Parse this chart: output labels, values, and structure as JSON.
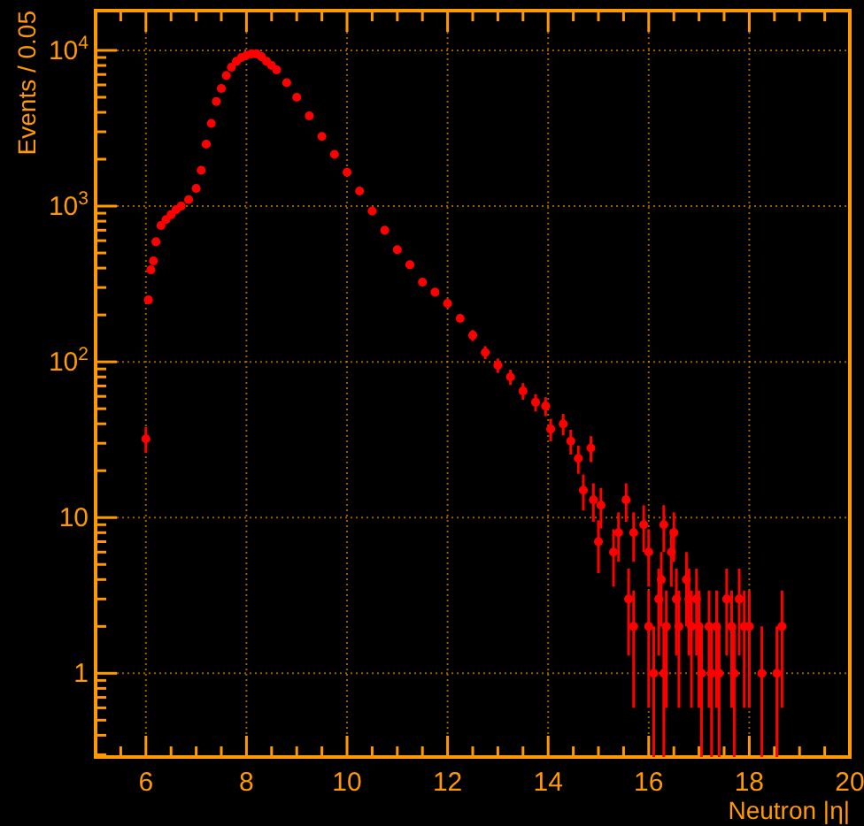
{
  "chart_data": {
    "type": "scatter",
    "xlabel": "Neutron |η|",
    "ylabel": "Events / 0.05",
    "log": "y",
    "grid": true,
    "marker": "circle",
    "xlim": [
      5,
      20
    ],
    "ylim": [
      0.29,
      18000
    ],
    "xticks": [
      {
        "value": 5.5,
        "label": null
      },
      6,
      {
        "value": 6.5,
        "label": null
      },
      {
        "value": 7,
        "label": null
      },
      {
        "value": 7.5,
        "label": null
      },
      8,
      {
        "value": 8.5,
        "label": null
      },
      {
        "value": 9,
        "label": null
      },
      {
        "value": 9.5,
        "label": null
      },
      10,
      {
        "value": 10.5,
        "label": null
      },
      {
        "value": 11,
        "label": null
      },
      {
        "value": 11.5,
        "label": null
      },
      12,
      {
        "value": 12.5,
        "label": null
      },
      {
        "value": 13,
        "label": null
      },
      {
        "value": 13.5,
        "label": null
      },
      14,
      {
        "value": 14.5,
        "label": null
      },
      {
        "value": 15,
        "label": null
      },
      {
        "value": 15.5,
        "label": null
      },
      16,
      {
        "value": 16.5,
        "label": null
      },
      {
        "value": 17,
        "label": null
      },
      {
        "value": 17.5,
        "label": null
      },
      18,
      {
        "value": 18.5,
        "label": null
      },
      {
        "value": 19,
        "label": null
      },
      {
        "value": 19.5,
        "label": null
      },
      20
    ],
    "yticks": [
      {
        "value": 0.3,
        "label": null
      },
      {
        "value": 0.4,
        "label": null
      },
      {
        "value": 0.5,
        "label": null
      },
      {
        "value": 0.6,
        "label": null
      },
      {
        "value": 0.7,
        "label": null
      },
      {
        "value": 0.8,
        "label": null
      },
      {
        "value": 0.9,
        "label": null
      },
      1,
      {
        "value": 2,
        "label": null
      },
      {
        "value": 3,
        "label": null
      },
      {
        "value": 4,
        "label": null
      },
      {
        "value": 5,
        "label": null
      },
      {
        "value": 6,
        "label": null
      },
      {
        "value": 7,
        "label": null
      },
      {
        "value": 8,
        "label": null
      },
      {
        "value": 9,
        "label": null
      },
      10,
      {
        "value": 20,
        "label": null
      },
      {
        "value": 30,
        "label": null
      },
      {
        "value": 40,
        "label": null
      },
      {
        "value": 50,
        "label": null
      },
      {
        "value": 60,
        "label": null
      },
      {
        "value": 70,
        "label": null
      },
      {
        "value": 80,
        "label": null
      },
      {
        "value": 90,
        "label": null
      },
      {
        "value": 100,
        "label": "10$^{2}$"
      },
      {
        "value": 200,
        "label": null
      },
      {
        "value": 300,
        "label": null
      },
      {
        "value": 400,
        "label": null
      },
      {
        "value": 500,
        "label": null
      },
      {
        "value": 600,
        "label": null
      },
      {
        "value": 700,
        "label": null
      },
      {
        "value": 800,
        "label": null
      },
      {
        "value": 900,
        "label": null
      },
      {
        "value": 1000,
        "label": "10$^{3}$"
      },
      {
        "value": 2000,
        "label": null
      },
      {
        "value": 3000,
        "label": null
      },
      {
        "value": 4000,
        "label": null
      },
      {
        "value": 5000,
        "label": null
      },
      {
        "value": 6000,
        "label": null
      },
      {
        "value": 7000,
        "label": null
      },
      {
        "value": 8000,
        "label": null
      },
      {
        "value": 9000,
        "label": null
      },
      {
        "value": 10000,
        "label": "10$^{4}$"
      }
    ],
    "series": [
      {
        "color": "#ff0000",
        "x": [
          6.0,
          6.05,
          6.1,
          6.15,
          6.2,
          6.3,
          6.4,
          6.5,
          6.6,
          6.7,
          6.85,
          7.0,
          7.1,
          7.2,
          7.3,
          7.4,
          7.5,
          7.6,
          7.7,
          7.8,
          7.9,
          8.0,
          8.1,
          8.2,
          8.3,
          8.4,
          8.5,
          8.6,
          8.8,
          9.0,
          9.25,
          9.5,
          9.75,
          10.0,
          10.25,
          10.5,
          10.75,
          11.0,
          11.25,
          11.5,
          11.75,
          12.0,
          12.25,
          12.5,
          12.75,
          13.0,
          13.25,
          13.5,
          13.75,
          13.95,
          14.05,
          14.3,
          14.45,
          14.6,
          14.7,
          14.85,
          14.9,
          15.0,
          15.05,
          15.3,
          15.4,
          15.55,
          15.6,
          15.7,
          15.7,
          15.9,
          16.0,
          16.0,
          16.1,
          16.2,
          16.25,
          16.3,
          16.3,
          16.35,
          16.45,
          16.5,
          16.55,
          16.6,
          16.75,
          16.8,
          16.85,
          16.95,
          17.0,
          17.05,
          17.2,
          17.25,
          17.35,
          17.4,
          17.55,
          17.65,
          17.7,
          17.8,
          17.9,
          18.0,
          18.25,
          18.55,
          18.65
        ],
        "values": [
          32,
          250,
          390,
          445,
          590,
          750,
          820,
          880,
          950,
          1000,
          1100,
          1300,
          1700,
          2500,
          3400,
          4700,
          5700,
          6900,
          7800,
          8500,
          9000,
          9300,
          9500,
          9500,
          9100,
          8500,
          8000,
          7500,
          6200,
          5000,
          3800,
          2800,
          2150,
          1650,
          1250,
          930,
          700,
          525,
          420,
          325,
          280,
          237,
          190,
          148,
          115,
          95,
          80,
          65,
          55,
          52,
          37,
          40,
          31,
          24,
          15,
          28,
          13,
          7,
          12,
          6,
          8,
          13,
          3,
          8,
          2,
          9,
          6,
          2,
          1,
          3,
          4,
          9,
          1,
          2,
          6,
          8,
          3,
          2,
          4,
          3,
          2,
          3,
          2,
          1,
          2,
          1,
          2,
          1,
          3,
          2,
          1,
          3,
          2,
          2,
          1,
          1,
          2
        ],
        "errors": [
          6,
          null,
          null,
          null,
          null,
          null,
          null,
          null,
          null,
          null,
          null,
          null,
          null,
          null,
          null,
          null,
          null,
          null,
          null,
          null,
          null,
          null,
          null,
          null,
          null,
          null,
          null,
          null,
          null,
          null,
          null,
          null,
          null,
          null,
          null,
          null,
          null,
          null,
          null,
          null,
          null,
          null,
          null,
          12,
          11,
          10,
          9,
          8,
          7,
          7.2,
          6.1,
          6.3,
          5.6,
          4.9,
          3.9,
          5.3,
          3.6,
          2.6,
          3.5,
          2.4,
          2.8,
          3.6,
          1.7,
          2.8,
          1.4,
          3,
          2.4,
          1.4,
          [
            0.29,
            2
          ],
          1.7,
          2,
          3,
          [
            0.29,
            2
          ],
          1.4,
          2.4,
          2.8,
          1.7,
          1.4,
          2,
          1.7,
          1.4,
          1.7,
          1.4,
          [
            0.29,
            2
          ],
          1.4,
          [
            0.29,
            2
          ],
          1.4,
          [
            0.29,
            2
          ],
          1.7,
          1.4,
          [
            0.29,
            2
          ],
          1.7,
          1.4,
          1.4,
          [
            0.29,
            2
          ],
          [
            0.29,
            2
          ],
          1.4
        ]
      }
    ]
  }
}
